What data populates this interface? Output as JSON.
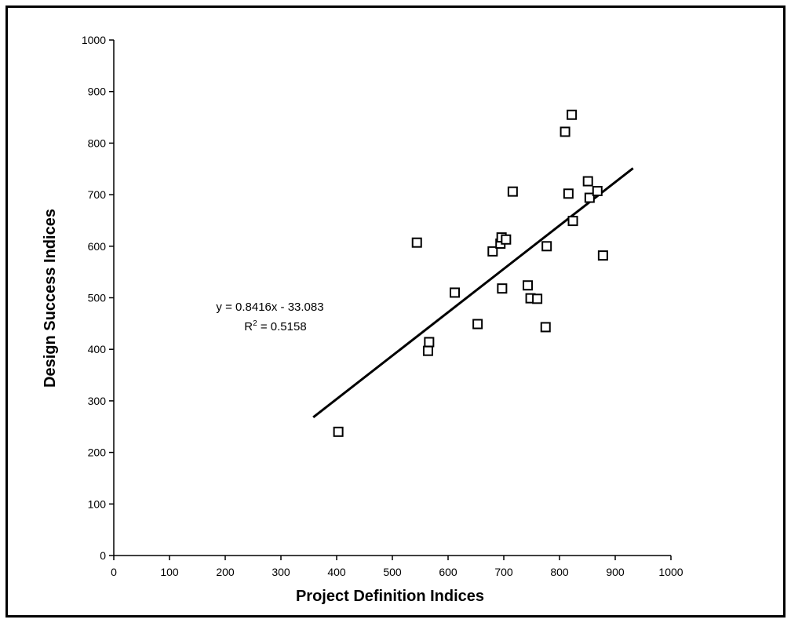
{
  "chart_data": {
    "type": "scatter",
    "xlabel": "Project Definition Indices",
    "ylabel": "Design Success Indices",
    "xlim": [
      0,
      1000
    ],
    "ylim": [
      0,
      1000
    ],
    "xticks": [
      "0",
      "100",
      "200",
      "300",
      "400",
      "500",
      "600",
      "700",
      "800",
      "900",
      "1000"
    ],
    "yticks": [
      "0",
      "100",
      "200",
      "300",
      "400",
      "500",
      "600",
      "700",
      "800",
      "900",
      "1000"
    ],
    "grid": false,
    "marker": "hollow-square",
    "series": [
      {
        "points": [
          [
            403,
            240
          ],
          [
            544,
            607
          ],
          [
            564,
            397
          ],
          [
            566,
            414
          ],
          [
            612,
            510
          ],
          [
            653,
            449
          ],
          [
            680,
            590
          ],
          [
            694,
            605
          ],
          [
            696,
            617
          ],
          [
            697,
            518
          ],
          [
            704,
            613
          ],
          [
            716,
            706
          ],
          [
            743,
            524
          ],
          [
            748,
            499
          ],
          [
            760,
            498
          ],
          [
            775,
            443
          ],
          [
            777,
            600
          ],
          [
            810,
            822
          ],
          [
            816,
            702
          ],
          [
            822,
            855
          ],
          [
            824,
            649
          ],
          [
            851,
            726
          ],
          [
            854,
            694
          ],
          [
            868,
            707
          ],
          [
            878,
            582
          ]
        ]
      }
    ],
    "trendline": {
      "slope": 0.8416,
      "intercept": -33.083,
      "x_range": [
        358,
        932
      ],
      "equation_label": "y = 0.8416x - 33.083",
      "r2_prefix": "R",
      "r2_sup": "2",
      "r2_suffix": " = 0.5158"
    }
  }
}
